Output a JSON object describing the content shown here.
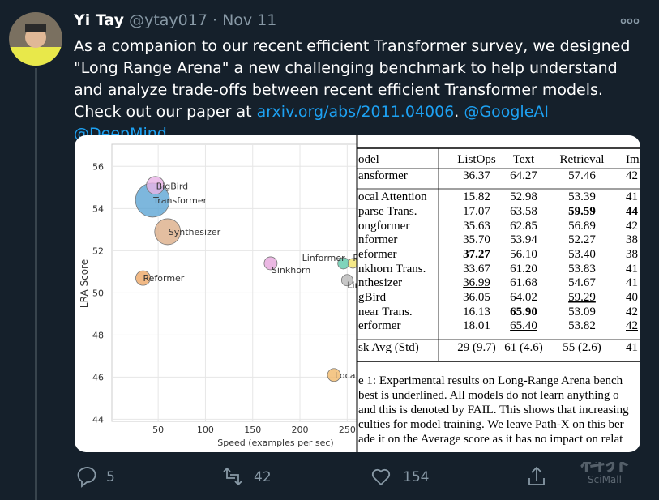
{
  "tweet": {
    "name": "Yi Tay",
    "handle": "@ytay017",
    "separator": "·",
    "date": "Nov 11",
    "text": [
      "As a companion to our recent efficient Transformer survey, we designed \"Long Range Arena\" a new challenging benchmark to help understand and analyze trade-offs between recent efficient Transformer models. Check out our paper at ",
      "arxiv.org/abs/2011.04006",
      ".",
      "@GoogleAI",
      "@DeepMind"
    ]
  },
  "media": {
    "chart": {
      "type": "scatter",
      "xlabel": "Speed (examples per sec)",
      "ylabel": "LRA Score",
      "labels": [
        "Transformer",
        "BigBird",
        "Synthesizer",
        "Reformer",
        "Sinkhorn",
        "Linformer",
        "P",
        "Lin",
        "Loca"
      ],
      "x": [
        44,
        47,
        60,
        34,
        169,
        246,
        256,
        250,
        236
      ],
      "y": [
        54.4,
        55.1,
        52.9,
        50.7,
        51.4,
        51.4,
        51.4,
        50.6,
        46.1
      ],
      "sizes": [
        21,
        11,
        16,
        9,
        8,
        7,
        6,
        7,
        8
      ],
      "colors": [
        "#5da5d4",
        "#e9b3e6",
        "#dcae88",
        "#eea867",
        "#e6a6dc",
        "#5fc9aa",
        "#f2e36a",
        "#b9b9b9",
        "#f1b96a"
      ],
      "xlim": [
        1,
        260
      ],
      "ylim": [
        43.9,
        57.05
      ],
      "xticks": [
        50,
        100,
        150,
        200,
        250
      ],
      "yticks": [
        44,
        46,
        48,
        50,
        52,
        54,
        56
      ],
      "grid": true
    },
    "table": {
      "header": [
        "odel",
        "ListOps",
        "Text",
        "Retrieval",
        "Im"
      ],
      "rows": [
        [
          "ansformer",
          "36.37",
          "64.27",
          "57.46",
          "42"
        ],
        [
          "ocal Attention",
          "15.82",
          "52.98",
          "53.39",
          "41"
        ],
        [
          "parse Trans.",
          "17.07",
          "63.58",
          "59.59",
          "44"
        ],
        [
          "ongformer",
          "35.63",
          "62.85",
          "56.89",
          "42"
        ],
        [
          "nformer",
          "35.70",
          "53.94",
          "52.27",
          "38"
        ],
        [
          "eformer",
          "37.27",
          "56.10",
          "53.40",
          "38"
        ],
        [
          "nkhorn Trans.",
          "33.67",
          "61.20",
          "53.83",
          "41"
        ],
        [
          "nthesizer",
          "36.99",
          "61.68",
          "54.67",
          "41"
        ],
        [
          "gBird",
          "36.05",
          "64.02",
          "59.29",
          "40"
        ],
        [
          "near Trans.",
          "16.13",
          "65.90",
          "53.09",
          "42"
        ],
        [
          "erformer",
          "18.01",
          "65.40",
          "53.82",
          "42"
        ],
        [
          "sk Avg (Std)",
          "29 (9.7)",
          "61 (4.6)",
          "55 (2.6)",
          "41 ("
        ]
      ],
      "bold": [
        [
          2,
          3
        ],
        [
          2,
          4
        ],
        [
          5,
          1
        ],
        [
          9,
          2
        ]
      ],
      "underline": [
        [
          7,
          1
        ],
        [
          8,
          3
        ],
        [
          10,
          2
        ],
        [
          10,
          4
        ]
      ],
      "caption": [
        "e 1: Experimental results on Long-Range Arena bench",
        "best is underlined. All models do not learn anything o",
        "and this is denoted by FAIL. This shows that increasing",
        "culties for model training. We leave Path-X on this ber",
        "ade it on the Average score as it has no impact on relat"
      ]
    }
  },
  "actions": {
    "reply": 5,
    "retweet": 42,
    "like": 154
  },
  "watermark": {
    "logo": "科界",
    "name": "SciMall"
  }
}
